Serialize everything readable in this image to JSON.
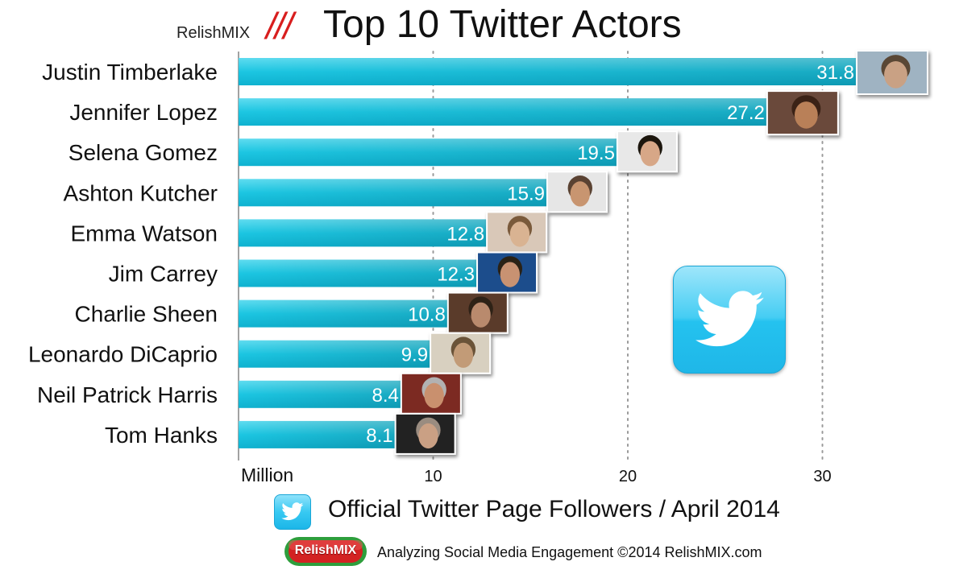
{
  "header": {
    "brand": "RelishMIX",
    "slashes": "///",
    "title": "Top 10 Twitter Actors"
  },
  "chart_data": {
    "type": "bar",
    "orientation": "horizontal",
    "title": "Top 10 Twitter Actors",
    "categories": [
      "Justin Timberlake",
      "Jennifer Lopez",
      "Selena Gomez",
      "Ashton Kutcher",
      "Emma Watson",
      "Jim Carrey",
      "Charlie Sheen",
      "Leonardo DiCaprio",
      "Neil Patrick Harris",
      "Tom Hanks"
    ],
    "values": [
      31.8,
      27.2,
      19.5,
      15.9,
      12.8,
      12.3,
      10.8,
      9.9,
      8.4,
      8.1
    ],
    "value_labels": [
      "31.8",
      "27.2",
      "19.5",
      "15.9",
      "12.8",
      "12.3",
      "10.8",
      "9.9",
      "8.4",
      "8.1"
    ],
    "xlabel": "Million",
    "xlim": [
      0,
      36
    ],
    "xticks": [
      10,
      20,
      30
    ],
    "xtick_labels": [
      "10",
      "20",
      "30"
    ],
    "grid": "vertical dotted",
    "bar_color": "#1ec8e2",
    "legend": "Official Twitter Page Followers / April 2014",
    "legend_placement": "bottom"
  },
  "badge": {
    "icon": "twitter-bird-icon",
    "color": "#29c3ef"
  },
  "legend": {
    "icon": "twitter-bird-icon",
    "text": "Official Twitter Page Followers / April 2014"
  },
  "footer": {
    "logo_text": "RelishMIX",
    "tagline": "Analyzing Social Media Engagement ©2014 RelishMIX.com"
  }
}
